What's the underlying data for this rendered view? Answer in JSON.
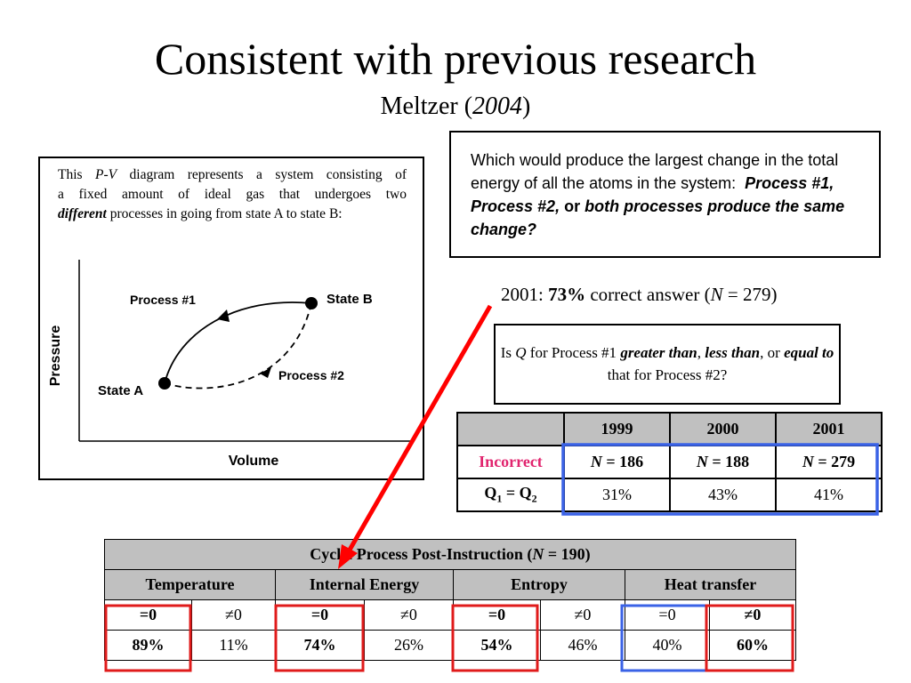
{
  "title": "Consistent with previous research",
  "subtitle": {
    "author": "Meltzer (",
    "year": "2004",
    "close": ")"
  },
  "pv_panel": {
    "description_lines": [
      "This P-V diagram represents a system consisting of",
      "a fixed amount of ideal gas that undergoes two",
      "different processes in going from state A to state B:"
    ],
    "pv_italic": "P-V",
    "different_word": "different",
    "y_axis_label": "Pressure",
    "x_axis_label": "Volume",
    "process1_label": "Process #1",
    "process2_label": "Process #2",
    "state_a_label": "State A",
    "state_b_label": "State B"
  },
  "question": {
    "text_plain": "Which would produce the largest change in the total energy of all the atoms in the system:",
    "option1": "Process #1, Process #2,",
    "or_word": "or",
    "option3": "both processes produce the same change?"
  },
  "result": {
    "prefix": "2001:",
    "percent": "73%",
    "middle": "correct answer (",
    "n_label": "N",
    "n_value": "= 279)"
  },
  "question2": {
    "part1": "Is",
    "q": "Q",
    "part2": "for Process #1",
    "greater": "greater than",
    "comma": ",",
    "less": "less than",
    "part3": ", or",
    "equal": "equal to",
    "part4": "that for Process #2?"
  },
  "table_years": {
    "headers": [
      "",
      "1999",
      "2000",
      "2001"
    ],
    "row_incorrect": {
      "label": "Incorrect",
      "values": [
        "N = 186",
        "N = 188",
        "N = 279"
      ]
    },
    "row_q": {
      "label": "Q1 = Q2",
      "values": [
        "31%",
        "43%",
        "41%"
      ]
    }
  },
  "table_cyclic": {
    "title_prefix": "Cyclic Process Post-Instruction (",
    "title_n": "N",
    "title_suffix": "= 190)",
    "groups": [
      "Temperature",
      "Internal Energy",
      "Entropy",
      "Heat transfer"
    ],
    "subheaders": [
      "=0",
      "≠0",
      "=0",
      "≠0",
      "=0",
      "≠0",
      "=0",
      "≠0"
    ],
    "values": [
      "89%",
      "11%",
      "74%",
      "26%",
      "54%",
      "46%",
      "40%",
      "60%"
    ]
  },
  "colors": {
    "red": "#e01b1b",
    "blue": "#3a62e6",
    "incorrect_pink": "#e1246e",
    "header_gray": "#c0c0c0"
  }
}
